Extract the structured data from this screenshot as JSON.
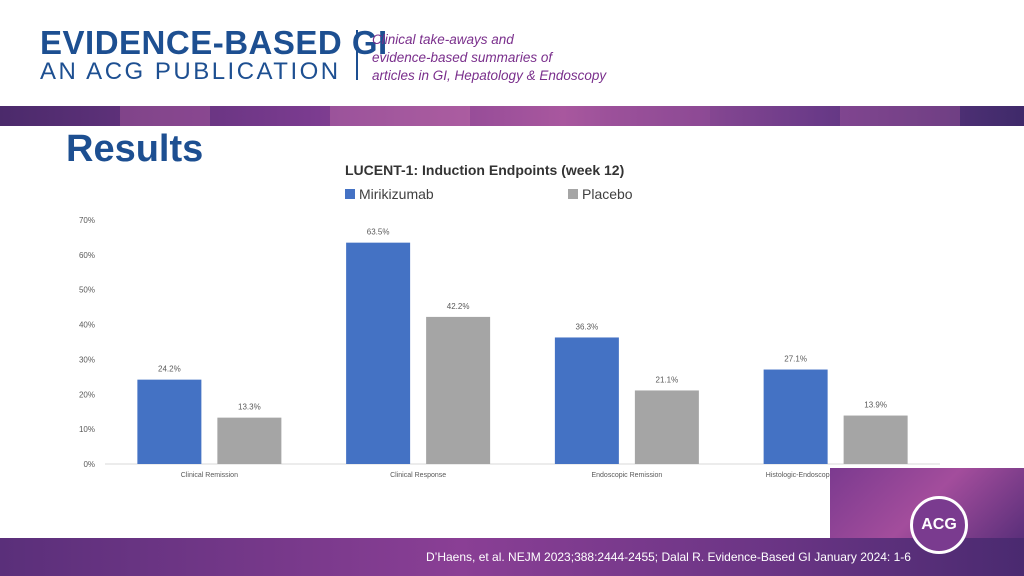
{
  "header": {
    "brand_line1": "EVIDENCE-BASED GI",
    "brand_line2": "AN ACG PUBLICATION",
    "tagline": [
      "Clinical take-aways and",
      "evidence-based summaries of",
      "articles in GI, Hepatology & Endoscopy"
    ]
  },
  "slide": {
    "title": "Results"
  },
  "footer": {
    "citation": "D’Haens, et al. NEJM 2023;388:2444-2455; Dalal R. Evidence-Based GI January 2024: 1-6"
  },
  "logo": {
    "text": "ACG"
  },
  "colors": {
    "brand_blue": "#1d4f91",
    "mirikizumab": "#4472c4",
    "placebo": "#a5a5a5",
    "purple": "#7a3b8f"
  },
  "chart_data": {
    "type": "bar",
    "title": "LUCENT-1: Induction Endpoints (week 12)",
    "categories": [
      "Clinical Remission",
      "Clinical Response",
      "Endoscopic Remission",
      "Histologic-Endoscopic Mucosal Improvement"
    ],
    "series": [
      {
        "name": "Mirikizumab",
        "values": [
          24.2,
          63.5,
          36.3,
          27.1
        ],
        "labels": [
          "24.2%",
          "63.5%",
          "36.3%",
          "27.1%"
        ],
        "color": "#4472c4"
      },
      {
        "name": "Placebo",
        "values": [
          13.3,
          42.2,
          21.1,
          13.9
        ],
        "labels": [
          "13.3%",
          "42.2%",
          "21.1%",
          "13.9%"
        ],
        "color": "#a5a5a5"
      }
    ],
    "ylim": [
      0,
      70
    ],
    "yticks": [
      0,
      10,
      20,
      30,
      40,
      50,
      60,
      70
    ],
    "ytick_labels": [
      "0%",
      "10%",
      "20%",
      "30%",
      "40%",
      "50%",
      "60%",
      "70%"
    ],
    "xlabel": "",
    "ylabel": "",
    "legend": "top",
    "grid": false
  }
}
